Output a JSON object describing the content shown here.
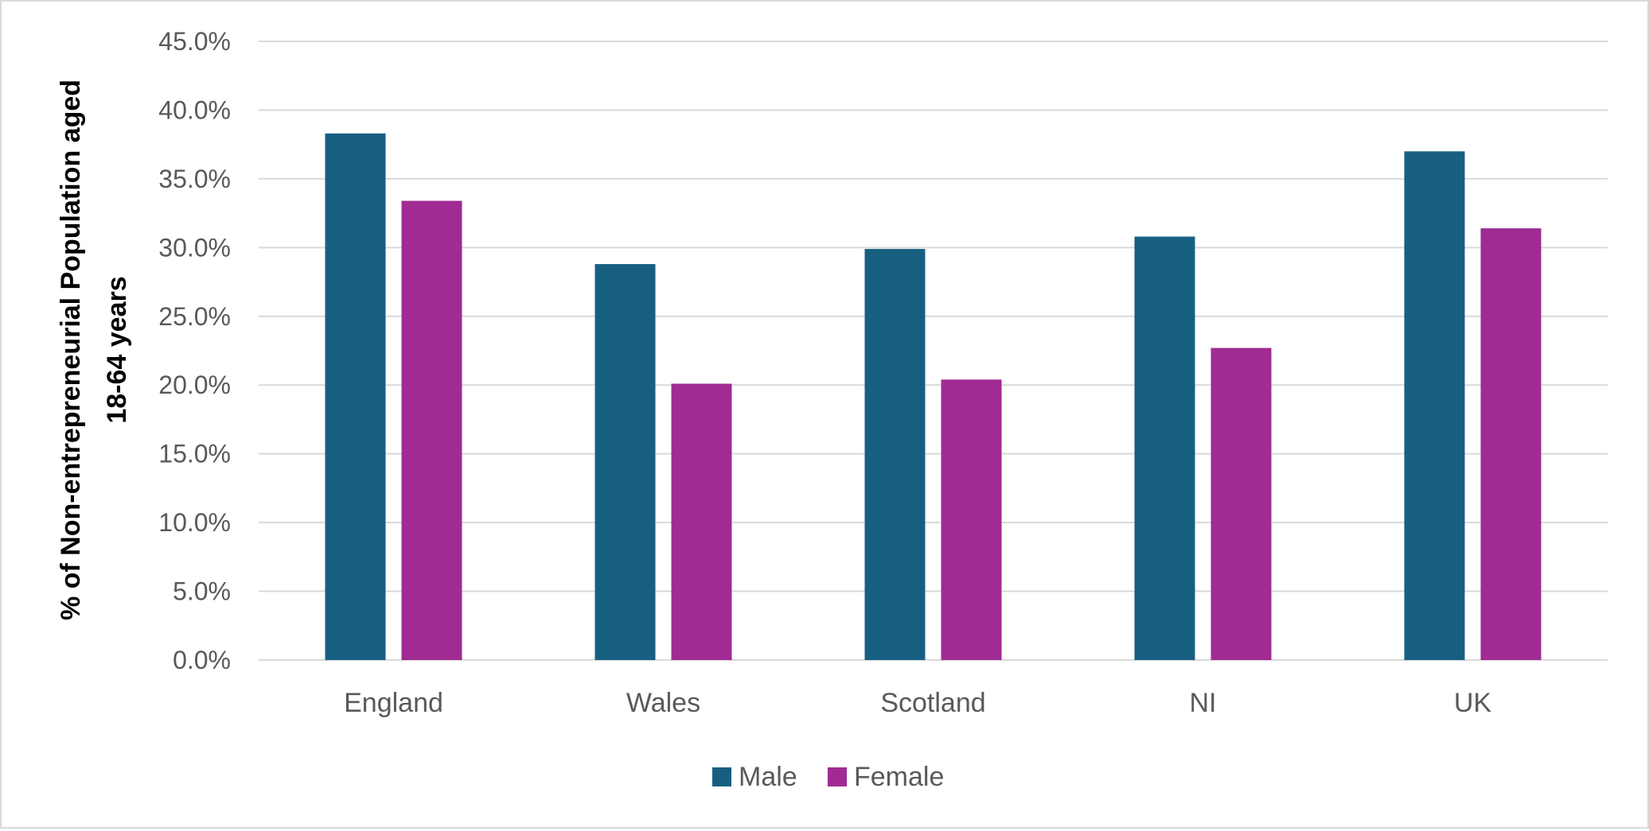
{
  "chart_data": {
    "type": "bar",
    "categories": [
      "England",
      "Wales",
      "Scotland",
      "NI",
      "UK"
    ],
    "series": [
      {
        "name": "Male",
        "color": "#175f81",
        "values": [
          38.3,
          28.8,
          29.9,
          30.8,
          37.0
        ]
      },
      {
        "name": "Female",
        "color": "#a02b93",
        "values": [
          33.4,
          20.1,
          20.4,
          22.7,
          31.4
        ]
      }
    ],
    "title": "",
    "xlabel": "",
    "ylabel_lines": [
      "% of Non-entrepreneurial Population aged",
      "18-64 years"
    ],
    "ylim": [
      0,
      45
    ],
    "yticks": [
      "0.0%",
      "5.0%",
      "10.0%",
      "15.0%",
      "20.0%",
      "25.0%",
      "30.0%",
      "35.0%",
      "40.0%",
      "45.0%"
    ],
    "grid": true,
    "legend_position": "bottom-center",
    "grid_color": "#d9d9d9"
  }
}
